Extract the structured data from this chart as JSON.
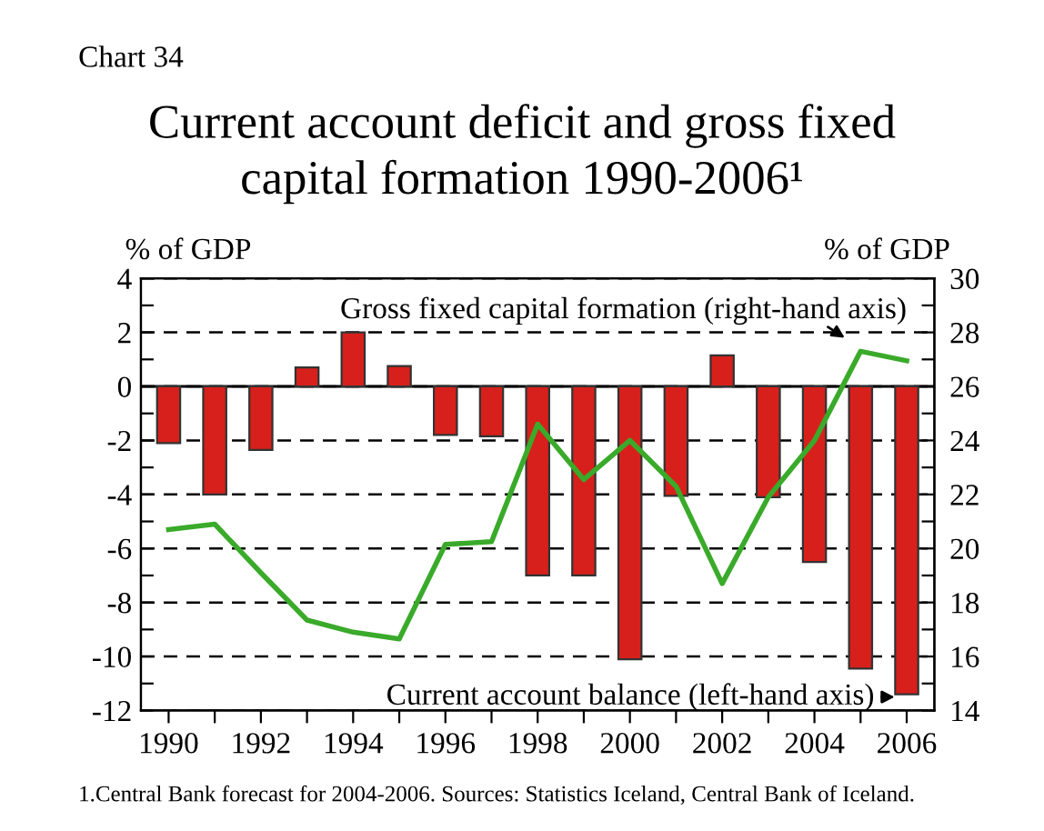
{
  "chart_data": {
    "type": "bar",
    "title": "Current account deficit and gross fixed\ncapital formation 1990-2006¹",
    "ylabel": "% of GDP",
    "y2label": "% of GDP",
    "categories": [
      "1990",
      null,
      "1992",
      null,
      "1994",
      null,
      "1996",
      null,
      "1998",
      null,
      "2000",
      null,
      "2002",
      null,
      "2004",
      null,
      "2006"
    ],
    "series": [
      {
        "name": "Current account balance (left-hand axis)",
        "color": "#d7201b",
        "values": [
          -2.1,
          -4.0,
          -2.35,
          0.7,
          2.0,
          0.75,
          -1.8,
          -1.85,
          -7.0,
          -7.0,
          -10.1,
          -4.05,
          1.15,
          -4.1,
          -6.5,
          -10.45,
          -11.4
        ]
      },
      {
        "name": "Gross fixed capital formation (right-hand axis)",
        "type": "line",
        "axis": "y2",
        "color": "#3aaa2a",
        "values": [
          20.7,
          20.9,
          19.1,
          17.35,
          16.9,
          16.65,
          20.15,
          20.25,
          24.6,
          22.55,
          24.0,
          22.3,
          18.7,
          21.9,
          24.0,
          27.3,
          26.95
        ]
      }
    ],
    "ylim": [
      -12,
      4
    ],
    "yticks": [
      -12,
      {
        "value": -11,
        "label": null
      },
      -10,
      {
        "value": -9,
        "label": null
      },
      -8,
      {
        "value": -7,
        "label": null
      },
      -6,
      {
        "value": -5,
        "label": null
      },
      -4,
      {
        "value": -3,
        "label": null
      },
      -2,
      {
        "value": -1,
        "label": null
      },
      0,
      {
        "value": 1,
        "label": null
      },
      2,
      {
        "value": 3,
        "label": null
      },
      4
    ],
    "y2lim": [
      14,
      30
    ],
    "y2ticks": [
      14,
      {
        "value": 15,
        "label": null
      },
      16,
      {
        "value": 17,
        "label": null
      },
      18,
      {
        "value": 19,
        "label": null
      },
      20,
      {
        "value": 21,
        "label": null
      },
      22,
      {
        "value": 23,
        "label": null
      },
      24,
      {
        "value": 25,
        "label": null
      },
      26,
      {
        "value": 27,
        "label": null
      },
      28,
      {
        "value": 29,
        "label": null
      },
      30
    ],
    "grid": "y",
    "line_style": "solid",
    "marker": "none",
    "legend": false,
    "annotations": [
      "Chart 34",
      "1.Central Bank forecast for 2004-2006. Sources: Statistics Iceland, Central Bank of Iceland."
    ]
  }
}
